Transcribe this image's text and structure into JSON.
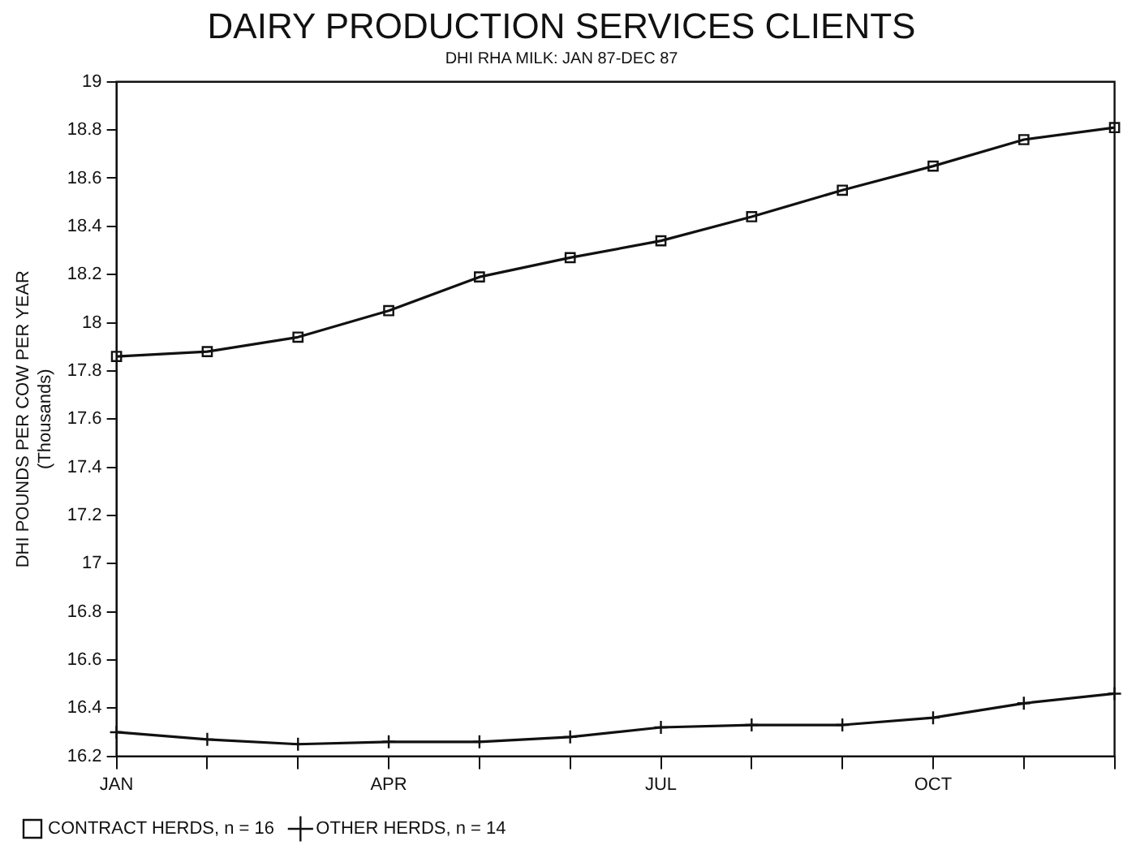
{
  "chart_data": {
    "type": "line",
    "title": "DAIRY PRODUCTION SERVICES CLIENTS",
    "subtitle": "DHI RHA MILK: JAN 87-DEC 87",
    "ylabel": "DHI POUNDS PER COW PER YEAR\n(Thousands)",
    "categories": [
      "JAN",
      null,
      null,
      "APR",
      null,
      null,
      "JUL",
      null,
      null,
      "OCT",
      null,
      null
    ],
    "series": [
      {
        "name": "CONTRACT HERDS, n = 16",
        "color": "#111111",
        "marker": "square",
        "values": [
          17.86,
          17.88,
          17.94,
          18.05,
          18.19,
          18.27,
          18.34,
          18.44,
          18.55,
          18.65,
          18.76,
          18.81
        ]
      },
      {
        "name": "OTHER HERDS, n = 14",
        "color": "#111111",
        "marker": "cross",
        "values": [
          16.3,
          16.27,
          16.25,
          16.26,
          16.26,
          16.28,
          16.32,
          16.33,
          16.33,
          16.36,
          16.42,
          16.46
        ]
      }
    ],
    "ylim": [
      16.2,
      19
    ],
    "yticks": [
      16.2,
      16.4,
      16.6,
      16.8,
      17,
      17.2,
      17.4,
      17.6,
      17.8,
      18,
      18.2,
      18.4,
      18.6,
      18.8,
      19
    ],
    "grid": false,
    "legend": "bottom",
    "line_style": "solid"
  }
}
